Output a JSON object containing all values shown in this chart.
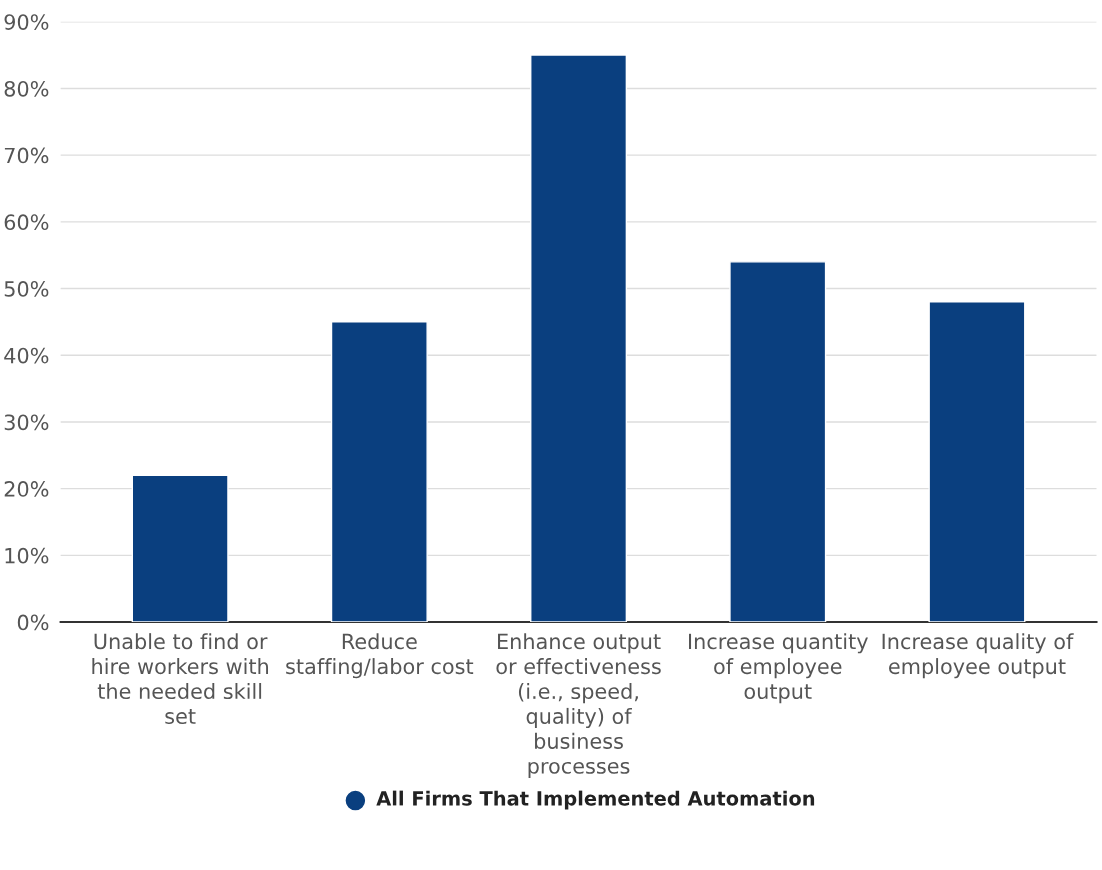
{
  "chart_data": {
    "type": "bar",
    "categories": [
      "Unable to find or\nhire workers with\nthe needed skill\nset",
      "Reduce\nstaffing/labor cost",
      "Enhance output\nor effectiveness\n(i.e., speed,\nquality) of\nbusiness\nprocesses",
      "Increase quantity\nof employee\noutput",
      "Increase quality of\nemployee output"
    ],
    "series": [
      {
        "name": "All Firms That Implemented Automation",
        "color": "#0a3f7f",
        "values": [
          22,
          45,
          85,
          54,
          48
        ]
      }
    ],
    "ylim": [
      0,
      90
    ],
    "yticks": [
      {
        "value": 0,
        "label": "0%"
      },
      {
        "value": 10,
        "label": "10%"
      },
      {
        "value": 20,
        "label": "20%"
      },
      {
        "value": 30,
        "label": "30%"
      },
      {
        "value": 40,
        "label": "40%"
      },
      {
        "value": 50,
        "label": "50%"
      },
      {
        "value": 60,
        "label": "60%"
      },
      {
        "value": 70,
        "label": "70%"
      },
      {
        "value": 80,
        "label": "80%"
      },
      {
        "value": 90,
        "label": "90%"
      }
    ],
    "grid": "y",
    "legend": "bottom",
    "marker": "circle"
  }
}
